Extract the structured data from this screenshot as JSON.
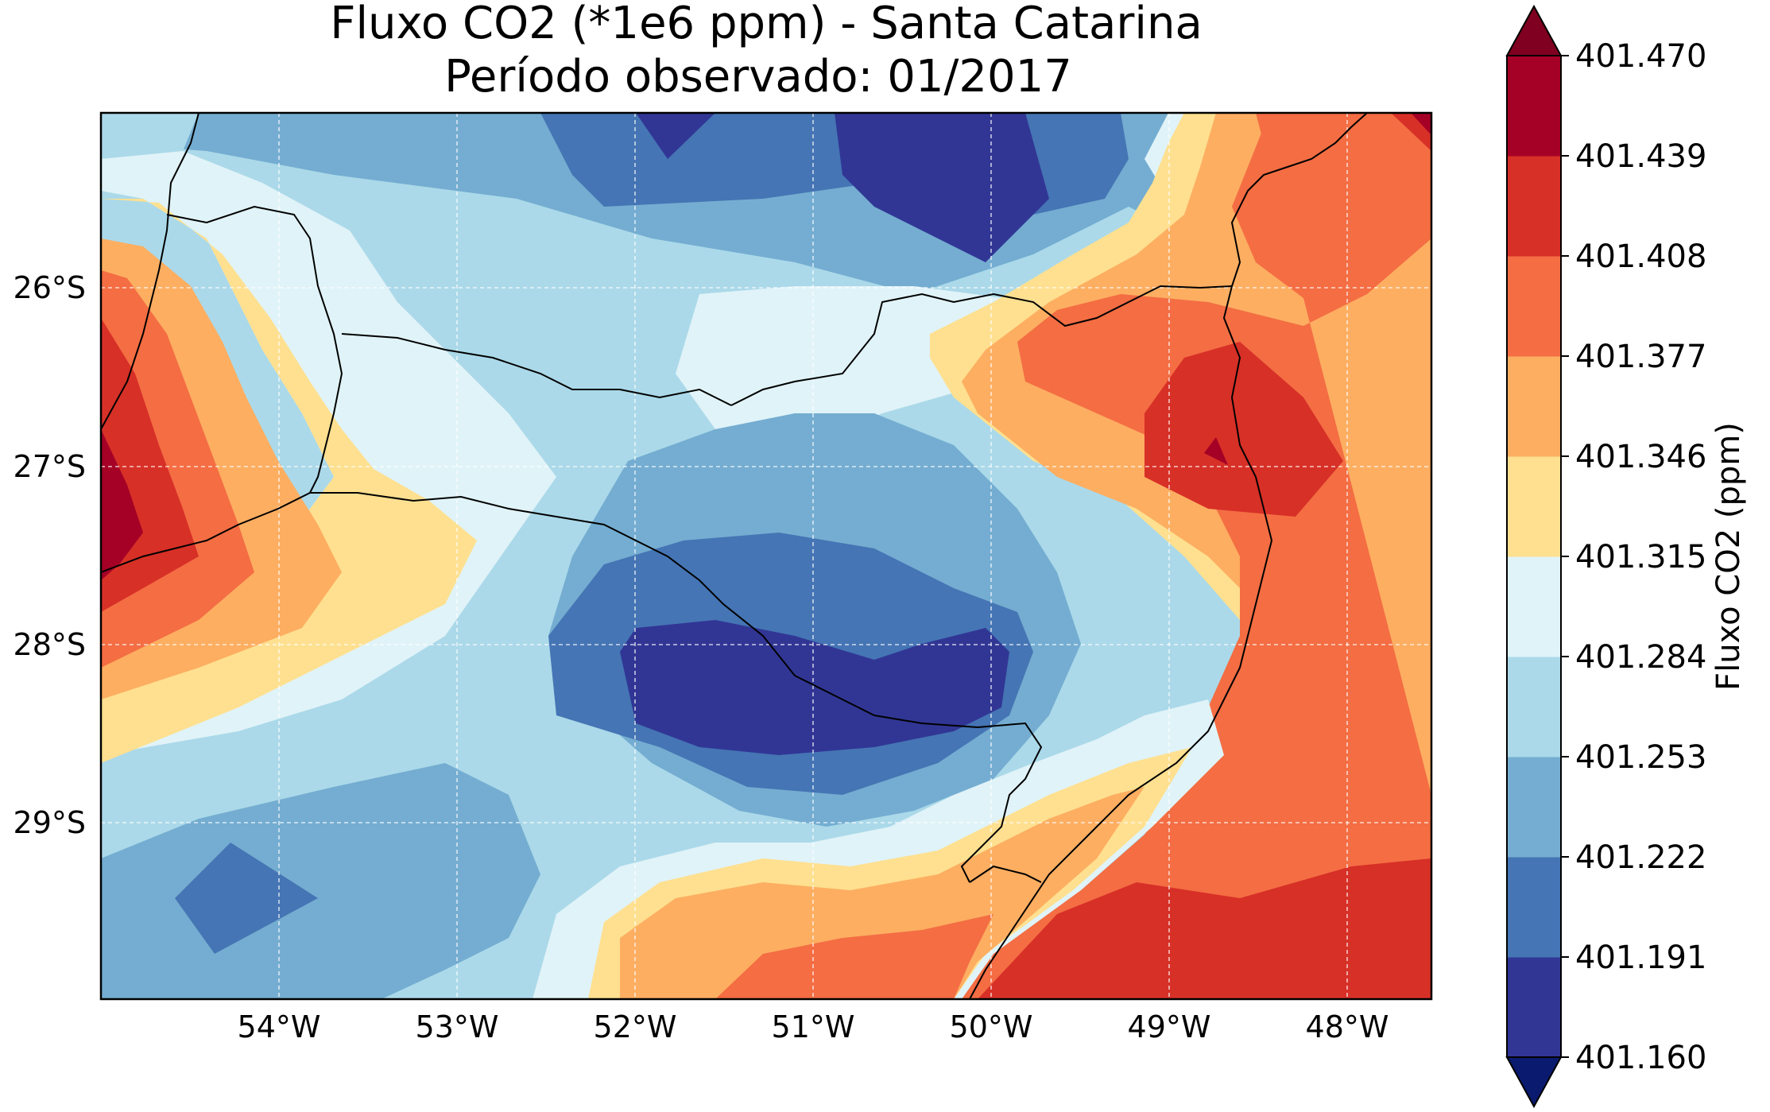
{
  "figure": {
    "title_line1": "Fluxo CO2 (*1e6 ppm) - Santa Catarina",
    "title_line2": "Período observado: 01/2017"
  },
  "map": {
    "lat_ticks": [
      "26°S",
      "27°S",
      "28°S",
      "29°S"
    ],
    "lon_ticks": [
      "54°W",
      "53°W",
      "52°W",
      "51°W",
      "50°W",
      "49°W",
      "48°W"
    ],
    "gridlines": true
  },
  "colorbar": {
    "label": "Fluxo CO2 (ppm)",
    "levels": [
      "401.160",
      "401.191",
      "401.222",
      "401.253",
      "401.284",
      "401.315",
      "401.346",
      "401.377",
      "401.408",
      "401.439",
      "401.470"
    ],
    "colors": [
      "#313695",
      "#4575b4",
      "#74add1",
      "#abd9e9",
      "#e0f3f8",
      "#fee090",
      "#fdae61",
      "#f46d43",
      "#d73027",
      "#a50026"
    ],
    "under_color": "#0a1a6e",
    "over_color": "#7f0020"
  }
}
